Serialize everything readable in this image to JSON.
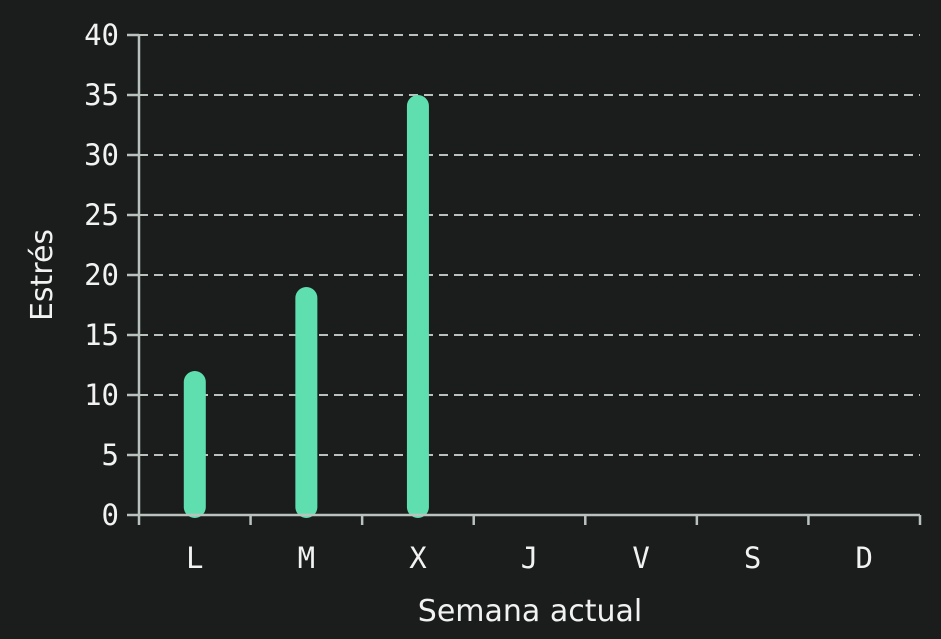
{
  "chart_data": {
    "type": "bar",
    "title": "",
    "xlabel": "Semana actual",
    "ylabel": "Estrés",
    "categories": [
      "L",
      "M",
      "X",
      "J",
      "V",
      "S",
      "D"
    ],
    "values": [
      12,
      19,
      35,
      null,
      null,
      null,
      null
    ],
    "ylim": [
      0,
      40
    ],
    "yticks": [
      0,
      5,
      10,
      15,
      20,
      25,
      30,
      35,
      40
    ],
    "grid": true,
    "legend": "none"
  },
  "colors": {
    "background": "#1b1d1c",
    "bar": "#5fdfb0",
    "grid": "#b9c2bd",
    "text": "#f2f2f2"
  }
}
